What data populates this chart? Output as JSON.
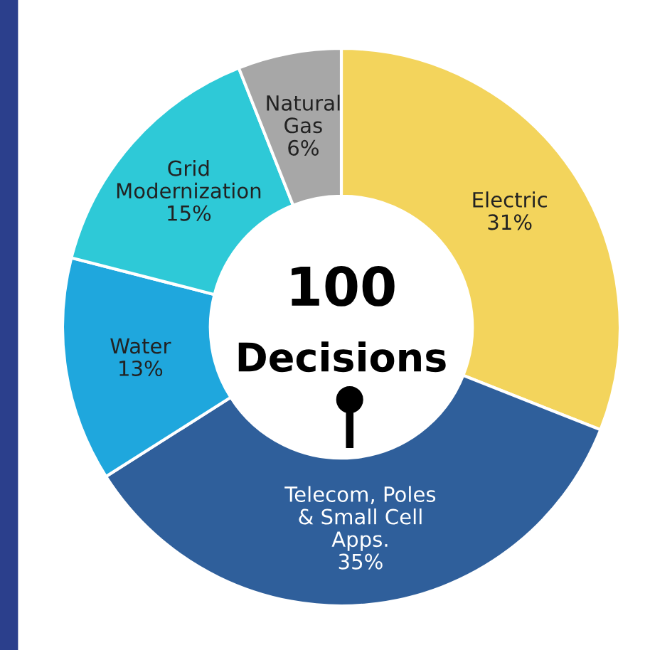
{
  "chart_data": {
    "type": "donut",
    "categories": [
      "Electric",
      "Telecom, Poles\n& Small Cell\nApps.",
      "Water",
      "Grid\nModernization",
      "Natural\nGas"
    ],
    "values": [
      31,
      35,
      13,
      15,
      6
    ],
    "colors": [
      "#f3d45c",
      "#2f5f9b",
      "#1fa7dd",
      "#2ec9d7",
      "#a7a7a7"
    ],
    "value_labels": [
      "31%",
      "35%",
      "13%",
      "15%",
      "6%"
    ],
    "annotations": [
      "100",
      "Decisions"
    ],
    "legend": false
  }
}
